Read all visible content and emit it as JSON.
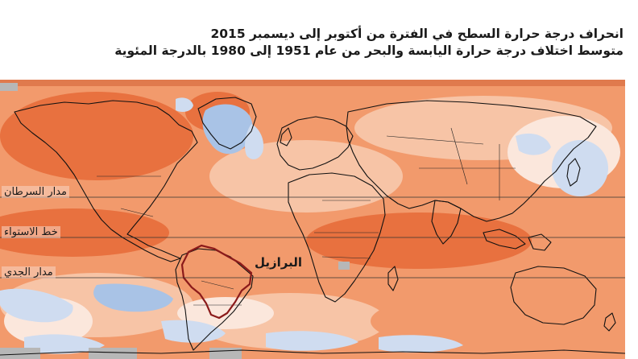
{
  "title": {
    "line1": "انحراف درجة حرارة السطح في الفترة من أكتوبر إلى ديسمبر 2015",
    "line2": "متوسط اختلاف درجة حرارة اليابسة والبحر من عام 1951 إلى 1980 بالدرجة المئوية"
  },
  "map": {
    "lines": {
      "tropic_cancer": "مدار السرطان",
      "equator": "خط الاستواء",
      "tropic_capricorn": "مدار الجدي"
    },
    "highlighted_country": "البرازيل",
    "colors": {
      "warm_strong": "#e8713f",
      "warm_medium": "#f29a6c",
      "warm_light": "#f7c4a6",
      "neutral": "#fbe7dc",
      "cool_light": "#cfdcf0",
      "cool_medium": "#a9c3e6",
      "no_data": "#b7b7b7",
      "brazil_outline": "#8b1a1a"
    }
  }
}
